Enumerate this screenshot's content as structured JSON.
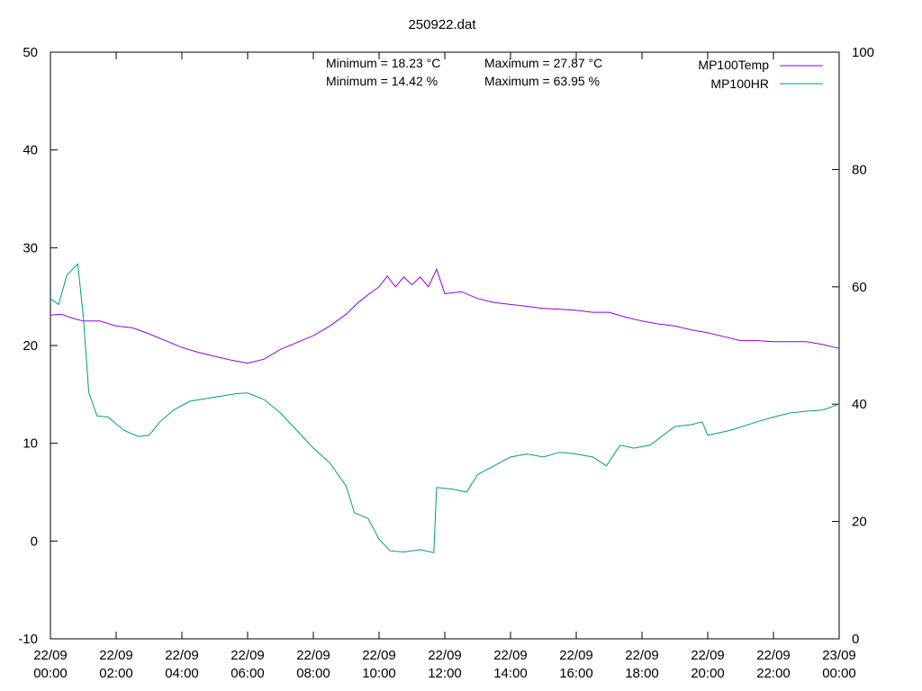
{
  "chart_data": {
    "type": "line",
    "title": "250922.dat",
    "y1lim": [
      -10,
      50
    ],
    "y1ticks": [
      -10,
      0,
      10,
      20,
      30,
      40,
      50
    ],
    "y2lim": [
      0,
      100
    ],
    "y2ticks": [
      0,
      20,
      40,
      60,
      80,
      100
    ],
    "xlim": [
      "2022-09-22 00:00",
      "2022-09-23 00:00"
    ],
    "xticks": [
      {
        "x": "2022-09-22 00:00",
        "line1": "22/09",
        "line2": "00:00"
      },
      {
        "x": "2022-09-22 02:00",
        "line1": "22/09",
        "line2": "02:00"
      },
      {
        "x": "2022-09-22 04:00",
        "line1": "22/09",
        "line2": "04:00"
      },
      {
        "x": "2022-09-22 06:00",
        "line1": "22/09",
        "line2": "06:00"
      },
      {
        "x": "2022-09-22 08:00",
        "line1": "22/09",
        "line2": "08:00"
      },
      {
        "x": "2022-09-22 10:00",
        "line1": "22/09",
        "line2": "10:00"
      },
      {
        "x": "2022-09-22 12:00",
        "line1": "22/09",
        "line2": "12:00"
      },
      {
        "x": "2022-09-22 14:00",
        "line1": "22/09",
        "line2": "14:00"
      },
      {
        "x": "2022-09-22 16:00",
        "line1": "22/09",
        "line2": "16:00"
      },
      {
        "x": "2022-09-22 18:00",
        "line1": "22/09",
        "line2": "18:00"
      },
      {
        "x": "2022-09-22 20:00",
        "line1": "22/09",
        "line2": "20:00"
      },
      {
        "x": "2022-09-22 22:00",
        "line1": "22/09",
        "line2": "22:00"
      },
      {
        "x": "2022-09-23 00:00",
        "line1": "23/09",
        "line2": "00:00"
      }
    ],
    "grid": false,
    "legend_position": "top-right",
    "annotations": [
      {
        "row": 1,
        "min": "Minimum = 18.23 °C",
        "max": "Maximum = 27.87 °C"
      },
      {
        "row": 2,
        "min": "Minimum = 14.42 %",
        "max": "Maximum = 63.95 %"
      }
    ],
    "series": [
      {
        "name": "MP100Temp",
        "axis": "y1",
        "color": "#9400d3",
        "points": [
          [
            "2022-09-22 00:00",
            23.1
          ],
          [
            "2022-09-22 00:20",
            23.2
          ],
          [
            "2022-09-22 00:40",
            22.8
          ],
          [
            "2022-09-22 01:00",
            22.5
          ],
          [
            "2022-09-22 01:30",
            22.5
          ],
          [
            "2022-09-22 02:00",
            22.0
          ],
          [
            "2022-09-22 02:30",
            21.8
          ],
          [
            "2022-09-22 03:00",
            21.2
          ],
          [
            "2022-09-22 03:30",
            20.5
          ],
          [
            "2022-09-22 04:00",
            19.8
          ],
          [
            "2022-09-22 04:30",
            19.3
          ],
          [
            "2022-09-22 05:00",
            18.9
          ],
          [
            "2022-09-22 05:30",
            18.5
          ],
          [
            "2022-09-22 06:00",
            18.2
          ],
          [
            "2022-09-22 06:30",
            18.6
          ],
          [
            "2022-09-22 07:00",
            19.6
          ],
          [
            "2022-09-22 07:30",
            20.3
          ],
          [
            "2022-09-22 08:00",
            21.0
          ],
          [
            "2022-09-22 08:30",
            22.0
          ],
          [
            "2022-09-22 09:00",
            23.2
          ],
          [
            "2022-09-22 09:20",
            24.3
          ],
          [
            "2022-09-22 09:40",
            25.2
          ],
          [
            "2022-09-22 10:00",
            26.0
          ],
          [
            "2022-09-22 10:15",
            27.1
          ],
          [
            "2022-09-22 10:30",
            26.0
          ],
          [
            "2022-09-22 10:45",
            27.0
          ],
          [
            "2022-09-22 11:00",
            26.2
          ],
          [
            "2022-09-22 11:15",
            27.0
          ],
          [
            "2022-09-22 11:30",
            26.0
          ],
          [
            "2022-09-22 11:45",
            27.8
          ],
          [
            "2022-09-22 12:00",
            25.3
          ],
          [
            "2022-09-22 12:30",
            25.5
          ],
          [
            "2022-09-22 13:00",
            24.8
          ],
          [
            "2022-09-22 13:30",
            24.4
          ],
          [
            "2022-09-22 14:00",
            24.2
          ],
          [
            "2022-09-22 14:30",
            24.0
          ],
          [
            "2022-09-22 15:00",
            23.8
          ],
          [
            "2022-09-22 15:30",
            23.7
          ],
          [
            "2022-09-22 16:00",
            23.6
          ],
          [
            "2022-09-22 16:30",
            23.4
          ],
          [
            "2022-09-22 17:00",
            23.4
          ],
          [
            "2022-09-22 17:30",
            22.9
          ],
          [
            "2022-09-22 18:00",
            22.5
          ],
          [
            "2022-09-22 18:30",
            22.2
          ],
          [
            "2022-09-22 19:00",
            22.0
          ],
          [
            "2022-09-22 19:30",
            21.6
          ],
          [
            "2022-09-22 20:00",
            21.3
          ],
          [
            "2022-09-22 20:30",
            20.9
          ],
          [
            "2022-09-22 21:00",
            20.5
          ],
          [
            "2022-09-22 21:30",
            20.5
          ],
          [
            "2022-09-22 22:00",
            20.4
          ],
          [
            "2022-09-22 22:30",
            20.4
          ],
          [
            "2022-09-22 23:00",
            20.4
          ],
          [
            "2022-09-22 23:30",
            20.1
          ],
          [
            "2022-09-23 00:00",
            19.7
          ]
        ]
      },
      {
        "name": "MP100HR",
        "axis": "y2",
        "color": "#009e73",
        "points": [
          [
            "2022-09-22 00:00",
            58.0
          ],
          [
            "2022-09-22 00:15",
            57.0
          ],
          [
            "2022-09-22 00:30",
            62.0
          ],
          [
            "2022-09-22 00:50",
            63.9
          ],
          [
            "2022-09-22 01:00",
            55.0
          ],
          [
            "2022-09-22 01:10",
            42.0
          ],
          [
            "2022-09-22 01:25",
            38.0
          ],
          [
            "2022-09-22 01:45",
            37.8
          ],
          [
            "2022-09-22 02:15",
            35.5
          ],
          [
            "2022-09-22 02:40",
            34.5
          ],
          [
            "2022-09-22 03:00",
            34.7
          ],
          [
            "2022-09-22 03:20",
            37.0
          ],
          [
            "2022-09-22 03:45",
            39.0
          ],
          [
            "2022-09-22 04:15",
            40.5
          ],
          [
            "2022-09-22 05:00",
            41.2
          ],
          [
            "2022-09-22 05:40",
            41.8
          ],
          [
            "2022-09-22 06:00",
            41.9
          ],
          [
            "2022-09-22 06:30",
            40.8
          ],
          [
            "2022-09-22 07:00",
            38.5
          ],
          [
            "2022-09-22 07:30",
            35.5
          ],
          [
            "2022-09-22 08:00",
            32.5
          ],
          [
            "2022-09-22 08:30",
            30.0
          ],
          [
            "2022-09-22 09:00",
            26.0
          ],
          [
            "2022-09-22 09:15",
            21.5
          ],
          [
            "2022-09-22 09:40",
            20.5
          ],
          [
            "2022-09-22 10:00",
            17.0
          ],
          [
            "2022-09-22 10:20",
            15.0
          ],
          [
            "2022-09-22 10:45",
            14.8
          ],
          [
            "2022-09-22 11:15",
            15.2
          ],
          [
            "2022-09-22 11:40",
            14.7
          ],
          [
            "2022-09-22 11:45",
            25.8
          ],
          [
            "2022-09-22 12:15",
            25.5
          ],
          [
            "2022-09-22 12:40",
            25.0
          ],
          [
            "2022-09-22 13:00",
            28.0
          ],
          [
            "2022-09-22 13:30",
            29.5
          ],
          [
            "2022-09-22 14:00",
            31.0
          ],
          [
            "2022-09-22 14:30",
            31.5
          ],
          [
            "2022-09-22 15:00",
            31.0
          ],
          [
            "2022-09-22 15:30",
            31.8
          ],
          [
            "2022-09-22 16:00",
            31.5
          ],
          [
            "2022-09-22 16:30",
            31.0
          ],
          [
            "2022-09-22 16:55",
            29.5
          ],
          [
            "2022-09-22 17:20",
            33.0
          ],
          [
            "2022-09-22 17:45",
            32.5
          ],
          [
            "2022-09-22 18:15",
            33.0
          ],
          [
            "2022-09-22 19:00",
            36.2
          ],
          [
            "2022-09-22 19:30",
            36.5
          ],
          [
            "2022-09-22 19:50",
            37.0
          ],
          [
            "2022-09-22 20:00",
            34.7
          ],
          [
            "2022-09-22 20:40",
            35.5
          ],
          [
            "2022-09-22 21:30",
            37.0
          ],
          [
            "2022-09-22 22:00",
            37.8
          ],
          [
            "2022-09-22 22:30",
            38.5
          ],
          [
            "2022-09-22 23:00",
            38.8
          ],
          [
            "2022-09-22 23:30",
            39.0
          ],
          [
            "2022-09-23 00:00",
            40.0
          ]
        ]
      }
    ]
  }
}
